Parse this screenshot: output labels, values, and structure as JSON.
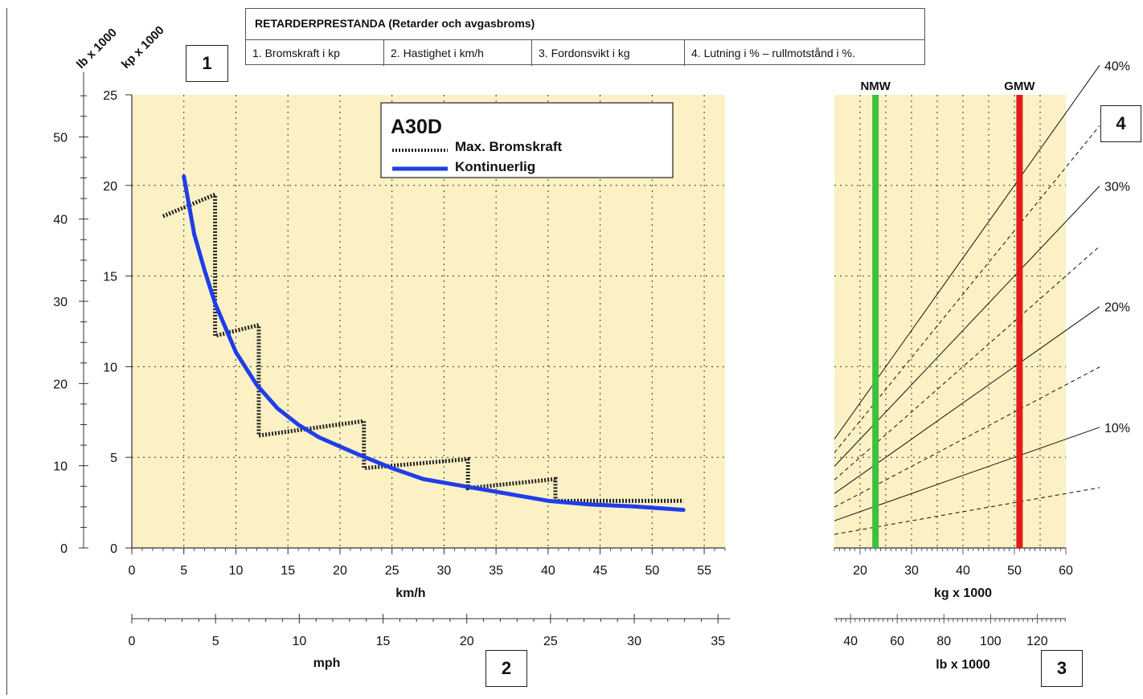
{
  "header": {
    "title": "RETARDERPRESTANDA (Retarder och avgasbroms)",
    "items": [
      "1. Bromskraft i kp",
      "2. Hastighet i km/h",
      "3. Fordonsvikt i kg",
      "4. Lutning i % – rullmotstånd i %."
    ]
  },
  "badges": {
    "b1": "1",
    "b2": "2",
    "b3": "3",
    "b4": "4"
  },
  "unit_labels": {
    "lb": "lb x 1000",
    "kp": "kp x 1000"
  },
  "legend": {
    "model": "A30D",
    "max": "Max. Bromskraft",
    "cont": "Kontinuerlig"
  },
  "colors": {
    "plot_bg": "#fbf1c4",
    "continuous": "#1f3de8",
    "max": "#222222",
    "nmw": "#3fbf3f",
    "gmw": "#e41b1b"
  },
  "chart_data": [
    {
      "type": "line",
      "title": "",
      "xlabel": "km/h",
      "ylabel": "kp x 1000",
      "xlim": [
        0,
        57
      ],
      "ylim": [
        0,
        25
      ],
      "x_ticks": [
        0,
        5,
        10,
        15,
        20,
        25,
        30,
        35,
        40,
        45,
        50,
        55
      ],
      "y_ticks": [
        0,
        5,
        10,
        15,
        20,
        25
      ],
      "secondary_y": {
        "label": "lb x 1000",
        "ticks": [
          0,
          10,
          20,
          30,
          40,
          50
        ],
        "per_kp": 2.2046
      },
      "secondary_x": {
        "label": "mph",
        "ticks": [
          0,
          5,
          10,
          15,
          20,
          25,
          30,
          35
        ],
        "per_kmh": 0.6214
      },
      "grid": true,
      "series": [
        {
          "name": "Kontinuerlig",
          "x": [
            5,
            6,
            7,
            8,
            10,
            12,
            14,
            16,
            18,
            20,
            22,
            25,
            28,
            31,
            34,
            37,
            40,
            44,
            48,
            53
          ],
          "y": [
            20.5,
            17.3,
            15.3,
            13.5,
            10.8,
            9.0,
            7.7,
            6.8,
            6.1,
            5.6,
            5.1,
            4.4,
            3.8,
            3.5,
            3.2,
            2.9,
            2.6,
            2.4,
            2.3,
            2.1
          ]
        },
        {
          "name": "Max. Bromskraft",
          "x": [
            3,
            8,
            8,
            12.2,
            12.2,
            22.3,
            22.3,
            32.3,
            32.3,
            40.7,
            40.7,
            53
          ],
          "y": [
            18.3,
            19.5,
            11.7,
            12.3,
            6.2,
            7.0,
            4.4,
            4.9,
            3.3,
            3.8,
            2.6,
            2.6
          ]
        }
      ]
    },
    {
      "type": "line",
      "title": "",
      "xlabel": "kg x 1000",
      "xlim": [
        15,
        60
      ],
      "ylim": [
        0,
        25
      ],
      "x_ticks": [
        20,
        30,
        40,
        50,
        60
      ],
      "secondary_x": {
        "label": "lb x 1000",
        "ticks": [
          40,
          60,
          80,
          100,
          120
        ],
        "per_kg": 2.2046
      },
      "grid": true,
      "vlines": [
        {
          "name": "NMW",
          "x": 23
        },
        {
          "name": "GMW",
          "x": 51
        }
      ],
      "grade_lines": [
        {
          "label": "10%",
          "grade": 10,
          "style": "solid"
        },
        {
          "label": "",
          "grade": 5,
          "style": "dashed"
        },
        {
          "label": "20%",
          "grade": 20,
          "style": "solid"
        },
        {
          "label": "",
          "grade": 15,
          "style": "dashed"
        },
        {
          "label": "30%",
          "grade": 30,
          "style": "solid"
        },
        {
          "label": "",
          "grade": 25,
          "style": "dashed"
        },
        {
          "label": "40%",
          "grade": 40,
          "style": "solid"
        },
        {
          "label": "",
          "grade": 35,
          "style": "dashed"
        }
      ]
    }
  ]
}
